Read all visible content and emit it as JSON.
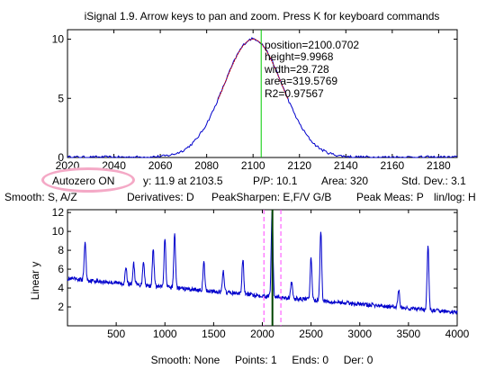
{
  "title": "iSignal 1.9. Arrow keys to pan and zoom. Press K for keyboard commands",
  "colors": {
    "signal": "#0000cc",
    "fit": "#cc0000",
    "cursor": "#00cc00",
    "markers": "#ff44ff",
    "dark_cursor": "#004400",
    "highlight": "#f4a9c6"
  },
  "peak_readout": {
    "position": "position=2100.0702",
    "height": "height=9.9968",
    "width": "width=29.728",
    "area": "area=319.5769",
    "r2": "R2=0.97567"
  },
  "status": {
    "autozero": "Autozero ON",
    "y_at": "y: 11.9 at 2103.5",
    "pp": "P/P: 10.1",
    "area": "Area: 320",
    "std": "Std. Dev.: 3.1"
  },
  "controls": {
    "smooth": "Smooth: S, A/Z",
    "derivatives": "Derivatives: D",
    "peaksharpen": "PeakSharpen: E,F/V G/B",
    "peakmeas": "Peak Meas: P",
    "linlog": "lin/log: H"
  },
  "bottom_status": {
    "smooth": "Smooth: None",
    "points": "Points: 1",
    "ends": "Ends: 0",
    "der": "Der: 0"
  },
  "chart_data": [
    {
      "type": "line",
      "title": "",
      "xlabel": "",
      "ylabel": "",
      "xlim": [
        2020,
        2188
      ],
      "ylim": [
        0,
        10.8
      ],
      "xticks": [
        2020,
        2040,
        2060,
        2080,
        2100,
        2120,
        2140,
        2160,
        2180
      ],
      "yticks": [
        0,
        5,
        10
      ],
      "peak": {
        "center": 2100,
        "height": 10,
        "width": 29.7
      },
      "fit_range": [
        2085,
        2115
      ],
      "cursor_x": 2103.5
    },
    {
      "type": "line",
      "title": "",
      "xlabel": "",
      "ylabel": "Linear y",
      "xlim": [
        0,
        4000
      ],
      "ylim": [
        0,
        12.3
      ],
      "xticks": [
        500,
        1000,
        1500,
        2000,
        2500,
        3000,
        3500,
        4000
      ],
      "yticks": [
        2,
        4,
        6,
        8,
        10,
        12
      ],
      "baseline": {
        "start": 5.0,
        "end": 1.4
      },
      "peaks": [
        {
          "x": 180,
          "h": 8.9
        },
        {
          "x": 600,
          "h": 6.1
        },
        {
          "x": 680,
          "h": 6.6
        },
        {
          "x": 780,
          "h": 6.9
        },
        {
          "x": 880,
          "h": 8.1
        },
        {
          "x": 1000,
          "h": 9.2
        },
        {
          "x": 1100,
          "h": 9.7
        },
        {
          "x": 1400,
          "h": 6.7
        },
        {
          "x": 1600,
          "h": 5.8
        },
        {
          "x": 1800,
          "h": 7.1
        },
        {
          "x": 2100,
          "h": 12.2
        },
        {
          "x": 2300,
          "h": 4.6
        },
        {
          "x": 2500,
          "h": 7.2
        },
        {
          "x": 2600,
          "h": 10.1
        },
        {
          "x": 3400,
          "h": 3.9
        },
        {
          "x": 3700,
          "h": 8.5
        }
      ],
      "cursor_x": 2103.5,
      "markers": [
        2016,
        2190
      ]
    }
  ]
}
